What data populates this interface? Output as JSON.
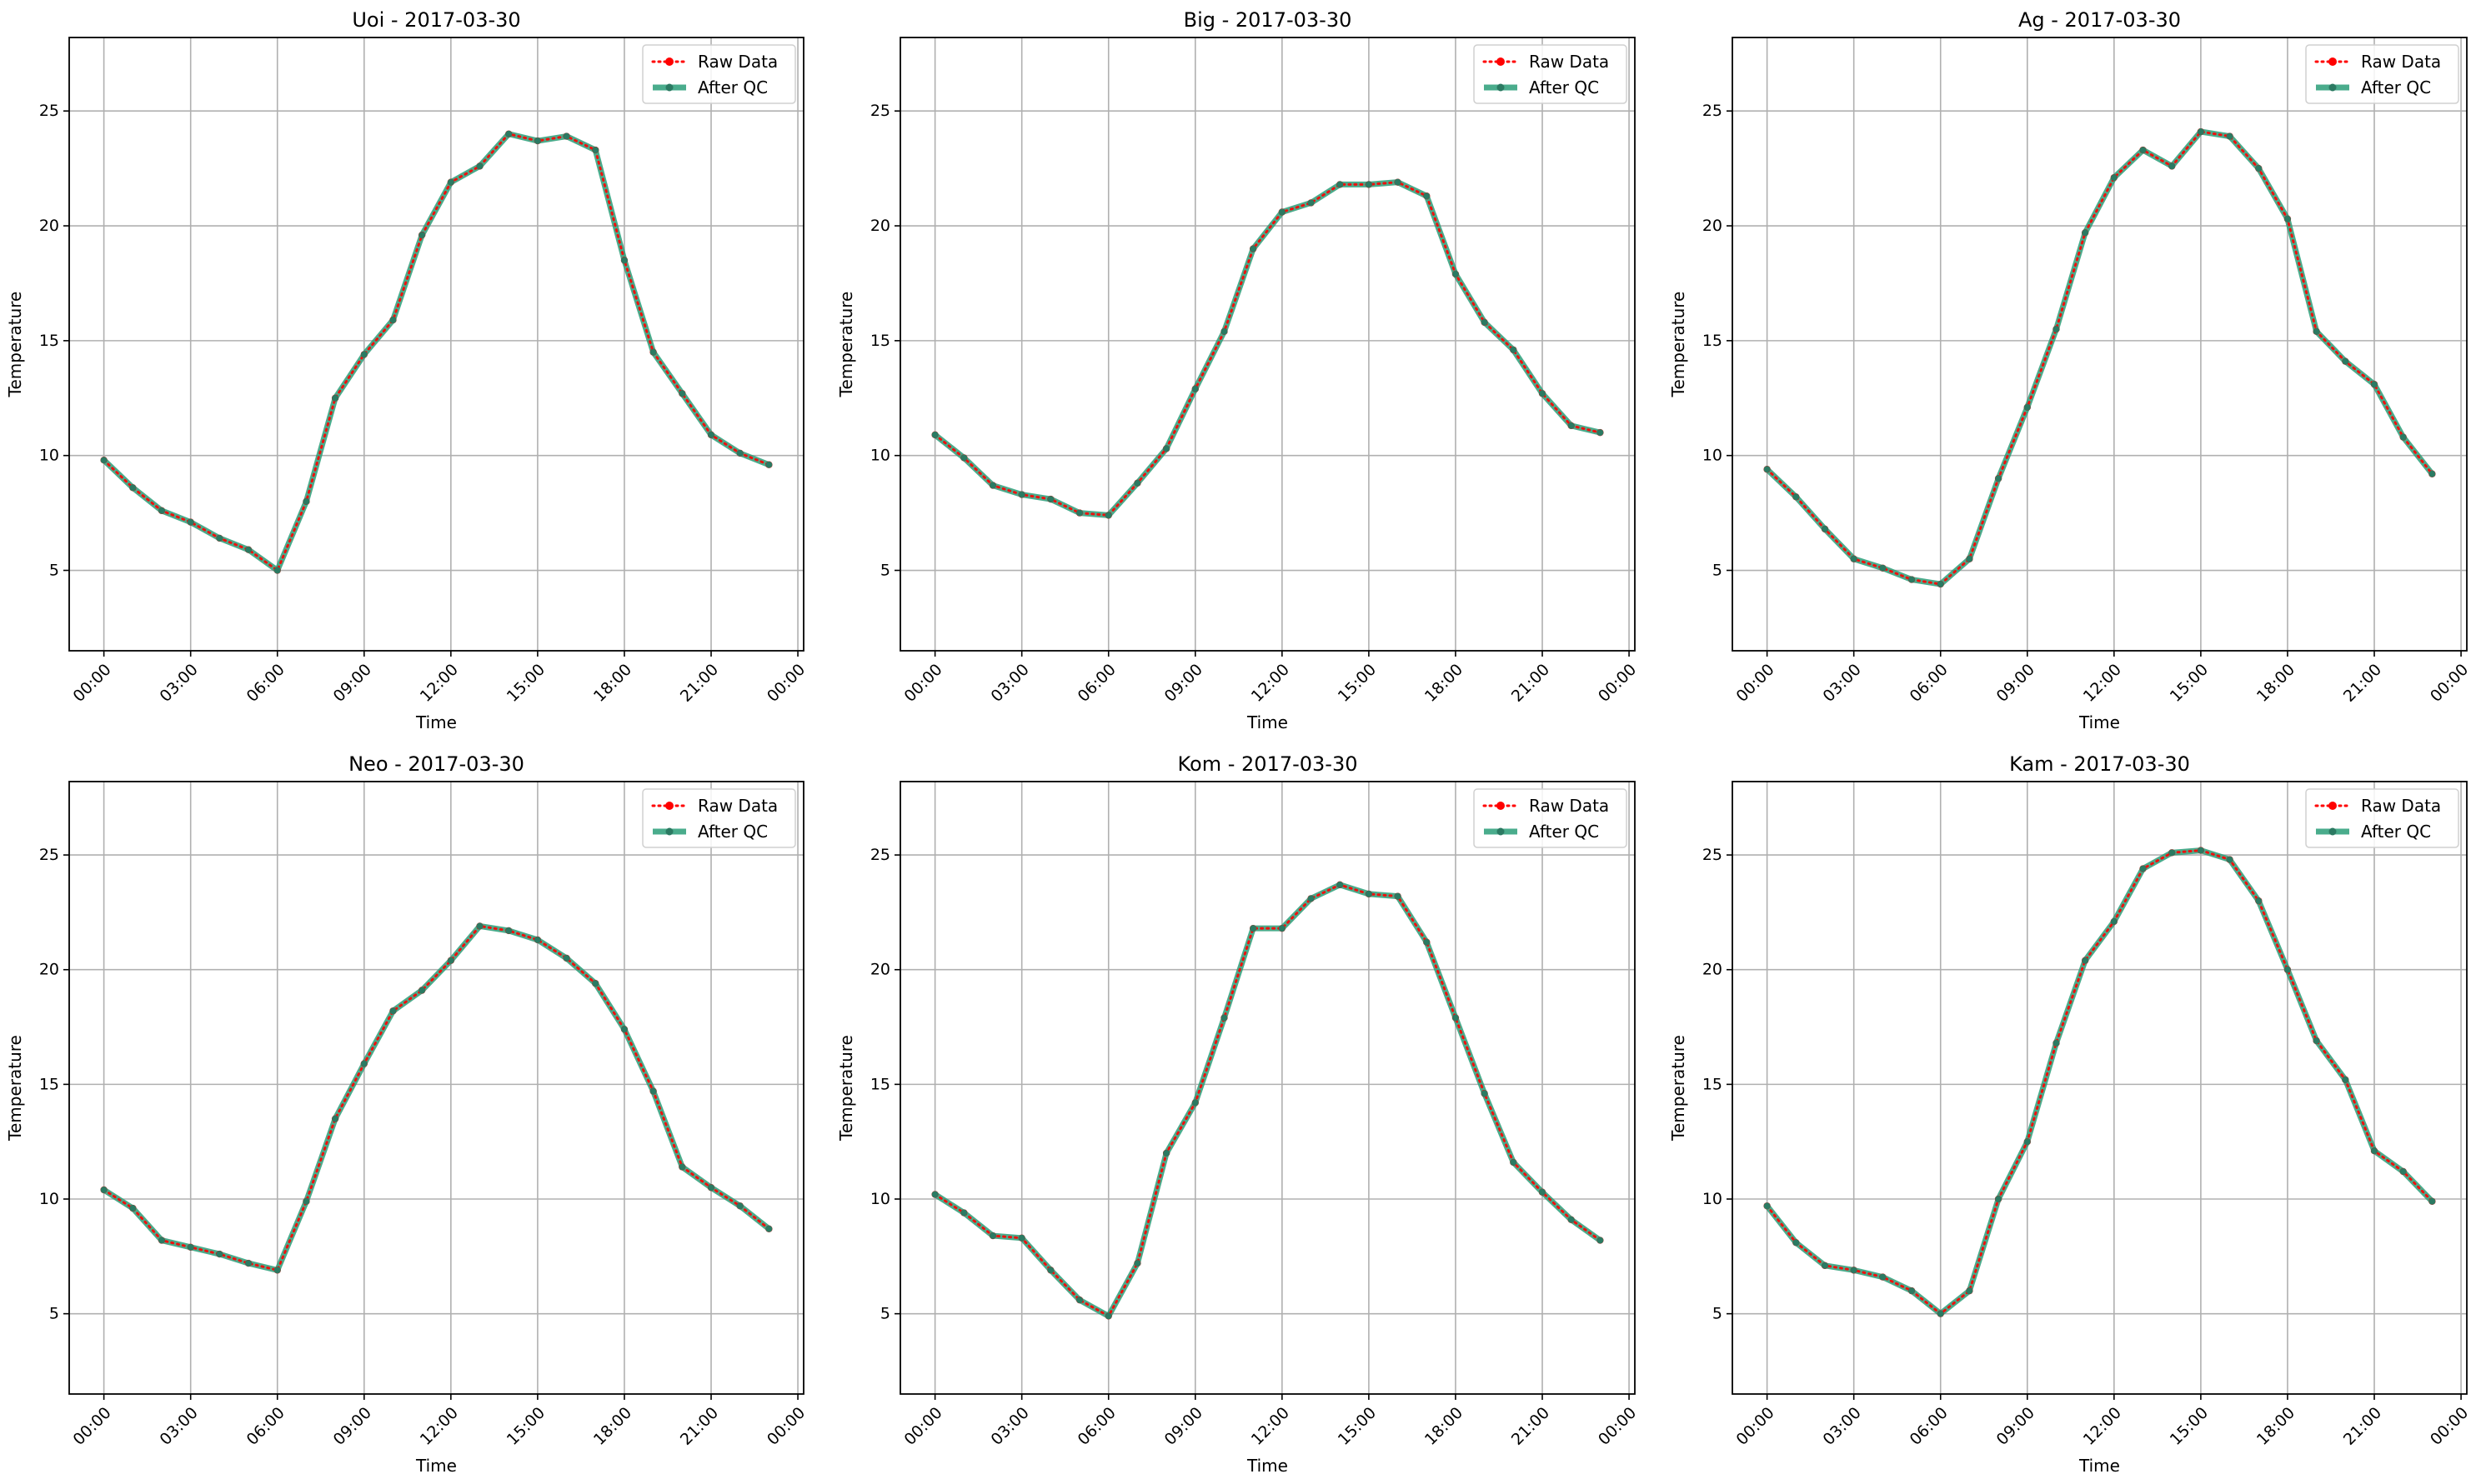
{
  "chart_data": [
    {
      "type": "line",
      "title": "Uoi - 2017-03-30",
      "xlabel": "Time",
      "ylabel": "Temperature",
      "x_ticks": [
        "00:00",
        "03:00",
        "06:00",
        "09:00",
        "12:00",
        "15:00",
        "18:00",
        "21:00",
        "00:00"
      ],
      "y_ticks": [
        5,
        10,
        15,
        20,
        25
      ],
      "ylim": [
        1.5,
        28.2
      ],
      "xlim_hours": [
        -1.2,
        24.2
      ],
      "grid": true,
      "legend": "top-right",
      "x": [
        "00:00",
        "01:00",
        "02:00",
        "03:00",
        "04:00",
        "05:00",
        "06:00",
        "07:00",
        "08:00",
        "09:00",
        "10:00",
        "11:00",
        "12:00",
        "13:00",
        "14:00",
        "15:00",
        "16:00",
        "17:00",
        "18:00",
        "19:00",
        "20:00",
        "21:00",
        "22:00",
        "23:00"
      ],
      "series": [
        {
          "name": "Raw Data",
          "color": "#ff0000",
          "values": [
            9.8,
            8.6,
            7.6,
            7.1,
            6.4,
            5.9,
            5.0,
            8.0,
            12.5,
            14.4,
            15.9,
            19.6,
            21.9,
            22.6,
            24.0,
            23.7,
            23.9,
            23.3,
            18.5,
            14.5,
            12.7,
            10.9,
            10.1,
            9.6
          ]
        },
        {
          "name": "After QC",
          "color": "#2a9d78",
          "values": [
            9.8,
            8.6,
            7.6,
            7.1,
            6.4,
            5.9,
            5.0,
            8.0,
            12.5,
            14.4,
            15.9,
            19.6,
            21.9,
            22.6,
            24.0,
            23.7,
            23.9,
            23.3,
            18.5,
            14.5,
            12.7,
            10.9,
            10.1,
            9.6
          ]
        }
      ]
    },
    {
      "type": "line",
      "title": "Big - 2017-03-30",
      "xlabel": "Time",
      "ylabel": "Temperature",
      "x_ticks": [
        "00:00",
        "03:00",
        "06:00",
        "09:00",
        "12:00",
        "15:00",
        "18:00",
        "21:00",
        "00:00"
      ],
      "y_ticks": [
        5,
        10,
        15,
        20,
        25
      ],
      "ylim": [
        1.5,
        28.2
      ],
      "xlim_hours": [
        -1.2,
        24.2
      ],
      "grid": true,
      "legend": "top-right",
      "x": [
        "00:00",
        "01:00",
        "02:00",
        "03:00",
        "04:00",
        "05:00",
        "06:00",
        "07:00",
        "08:00",
        "09:00",
        "10:00",
        "11:00",
        "12:00",
        "13:00",
        "14:00",
        "15:00",
        "16:00",
        "17:00",
        "18:00",
        "19:00",
        "20:00",
        "21:00",
        "22:00",
        "23:00"
      ],
      "series": [
        {
          "name": "Raw Data",
          "color": "#ff0000",
          "values": [
            10.9,
            9.9,
            8.7,
            8.3,
            8.1,
            7.5,
            7.4,
            8.8,
            10.3,
            12.9,
            15.4,
            19.0,
            20.6,
            21.0,
            21.8,
            21.8,
            21.9,
            21.3,
            17.9,
            15.8,
            14.6,
            12.7,
            11.3,
            11.0
          ]
        },
        {
          "name": "After QC",
          "color": "#2a9d78",
          "values": [
            10.9,
            9.9,
            8.7,
            8.3,
            8.1,
            7.5,
            7.4,
            8.8,
            10.3,
            12.9,
            15.4,
            19.0,
            20.6,
            21.0,
            21.8,
            21.8,
            21.9,
            21.3,
            17.9,
            15.8,
            14.6,
            12.7,
            11.3,
            11.0
          ]
        }
      ]
    },
    {
      "type": "line",
      "title": "Ag - 2017-03-30",
      "xlabel": "Time",
      "ylabel": "Temperature",
      "x_ticks": [
        "00:00",
        "03:00",
        "06:00",
        "09:00",
        "12:00",
        "15:00",
        "18:00",
        "21:00",
        "00:00"
      ],
      "y_ticks": [
        5,
        10,
        15,
        20,
        25
      ],
      "ylim": [
        1.5,
        28.2
      ],
      "xlim_hours": [
        -1.2,
        24.2
      ],
      "grid": true,
      "legend": "top-right",
      "x": [
        "00:00",
        "01:00",
        "02:00",
        "03:00",
        "04:00",
        "05:00",
        "06:00",
        "07:00",
        "08:00",
        "09:00",
        "10:00",
        "11:00",
        "12:00",
        "13:00",
        "14:00",
        "15:00",
        "16:00",
        "17:00",
        "18:00",
        "19:00",
        "20:00",
        "21:00",
        "22:00",
        "23:00"
      ],
      "series": [
        {
          "name": "Raw Data",
          "color": "#ff0000",
          "values": [
            9.4,
            8.2,
            6.8,
            5.5,
            5.1,
            4.6,
            4.4,
            5.5,
            9.0,
            12.1,
            15.5,
            19.7,
            22.1,
            23.3,
            22.6,
            24.1,
            23.9,
            22.5,
            20.3,
            15.4,
            14.1,
            13.1,
            10.8,
            9.2
          ]
        },
        {
          "name": "After QC",
          "color": "#2a9d78",
          "values": [
            9.4,
            8.2,
            6.8,
            5.5,
            5.1,
            4.6,
            4.4,
            5.5,
            9.0,
            12.1,
            15.5,
            19.7,
            22.1,
            23.3,
            22.6,
            24.1,
            23.9,
            22.5,
            20.3,
            15.4,
            14.1,
            13.1,
            10.8,
            9.2
          ]
        }
      ]
    },
    {
      "type": "line",
      "title": "Neo - 2017-03-30",
      "xlabel": "Time",
      "ylabel": "Temperature",
      "x_ticks": [
        "00:00",
        "03:00",
        "06:00",
        "09:00",
        "12:00",
        "15:00",
        "18:00",
        "21:00",
        "00:00"
      ],
      "y_ticks": [
        5,
        10,
        15,
        20,
        25
      ],
      "ylim": [
        1.5,
        28.2
      ],
      "xlim_hours": [
        -1.2,
        24.2
      ],
      "grid": true,
      "legend": "top-right",
      "x": [
        "00:00",
        "01:00",
        "02:00",
        "03:00",
        "04:00",
        "05:00",
        "06:00",
        "07:00",
        "08:00",
        "09:00",
        "10:00",
        "11:00",
        "12:00",
        "13:00",
        "14:00",
        "15:00",
        "16:00",
        "17:00",
        "18:00",
        "19:00",
        "20:00",
        "21:00",
        "22:00",
        "23:00"
      ],
      "series": [
        {
          "name": "Raw Data",
          "color": "#ff0000",
          "values": [
            10.4,
            9.6,
            8.2,
            7.9,
            7.6,
            7.2,
            6.9,
            9.9,
            13.5,
            15.9,
            18.2,
            19.1,
            20.4,
            21.9,
            21.7,
            21.3,
            20.5,
            19.4,
            17.4,
            14.7,
            11.4,
            10.5,
            9.7,
            8.7
          ]
        },
        {
          "name": "After QC",
          "color": "#2a9d78",
          "values": [
            10.4,
            9.6,
            8.2,
            7.9,
            7.6,
            7.2,
            6.9,
            9.9,
            13.5,
            15.9,
            18.2,
            19.1,
            20.4,
            21.9,
            21.7,
            21.3,
            20.5,
            19.4,
            17.4,
            14.7,
            11.4,
            10.5,
            9.7,
            8.7
          ]
        }
      ]
    },
    {
      "type": "line",
      "title": "Kom - 2017-03-30",
      "xlabel": "Time",
      "ylabel": "Temperature",
      "x_ticks": [
        "00:00",
        "03:00",
        "06:00",
        "09:00",
        "12:00",
        "15:00",
        "18:00",
        "21:00",
        "00:00"
      ],
      "y_ticks": [
        5,
        10,
        15,
        20,
        25
      ],
      "ylim": [
        1.5,
        28.2
      ],
      "xlim_hours": [
        -1.2,
        24.2
      ],
      "grid": true,
      "legend": "top-right",
      "x": [
        "00:00",
        "01:00",
        "02:00",
        "03:00",
        "04:00",
        "05:00",
        "06:00",
        "07:00",
        "08:00",
        "09:00",
        "10:00",
        "11:00",
        "12:00",
        "13:00",
        "14:00",
        "15:00",
        "16:00",
        "17:00",
        "18:00",
        "19:00",
        "20:00",
        "21:00",
        "22:00",
        "23:00"
      ],
      "series": [
        {
          "name": "Raw Data",
          "color": "#ff0000",
          "values": [
            10.2,
            9.4,
            8.4,
            8.3,
            6.9,
            5.6,
            4.9,
            7.2,
            12.0,
            14.2,
            17.9,
            21.8,
            21.8,
            23.1,
            23.7,
            23.3,
            23.2,
            21.2,
            17.9,
            14.6,
            11.6,
            10.3,
            9.1,
            8.2
          ]
        },
        {
          "name": "After QC",
          "color": "#2a9d78",
          "values": [
            10.2,
            9.4,
            8.4,
            8.3,
            6.9,
            5.6,
            4.9,
            7.2,
            12.0,
            14.2,
            17.9,
            21.8,
            21.8,
            23.1,
            23.7,
            23.3,
            23.2,
            21.2,
            17.9,
            14.6,
            11.6,
            10.3,
            9.1,
            8.2
          ]
        }
      ]
    },
    {
      "type": "line",
      "title": "Kam - 2017-03-30",
      "xlabel": "Time",
      "ylabel": "Temperature",
      "x_ticks": [
        "00:00",
        "03:00",
        "06:00",
        "09:00",
        "12:00",
        "15:00",
        "18:00",
        "21:00",
        "00:00"
      ],
      "y_ticks": [
        5,
        10,
        15,
        20,
        25
      ],
      "ylim": [
        1.5,
        28.2
      ],
      "xlim_hours": [
        -1.2,
        24.2
      ],
      "grid": true,
      "legend": "top-right",
      "x": [
        "00:00",
        "01:00",
        "02:00",
        "03:00",
        "04:00",
        "05:00",
        "06:00",
        "07:00",
        "08:00",
        "09:00",
        "10:00",
        "11:00",
        "12:00",
        "13:00",
        "14:00",
        "15:00",
        "16:00",
        "17:00",
        "18:00",
        "19:00",
        "20:00",
        "21:00",
        "22:00",
        "23:00"
      ],
      "series": [
        {
          "name": "Raw Data",
          "color": "#ff0000",
          "values": [
            9.7,
            8.1,
            7.1,
            6.9,
            6.6,
            6.0,
            5.0,
            6.0,
            10.0,
            12.5,
            16.8,
            20.4,
            22.1,
            24.4,
            25.1,
            25.2,
            24.8,
            23.0,
            20.0,
            16.9,
            15.2,
            12.1,
            11.2,
            9.9
          ]
        },
        {
          "name": "After QC",
          "color": "#2a9d78",
          "values": [
            9.7,
            8.1,
            7.1,
            6.9,
            6.6,
            6.0,
            5.0,
            6.0,
            10.0,
            12.5,
            16.8,
            20.4,
            22.1,
            24.4,
            25.1,
            25.2,
            24.8,
            23.0,
            20.0,
            16.9,
            15.2,
            12.1,
            11.2,
            9.9
          ]
        }
      ]
    }
  ]
}
